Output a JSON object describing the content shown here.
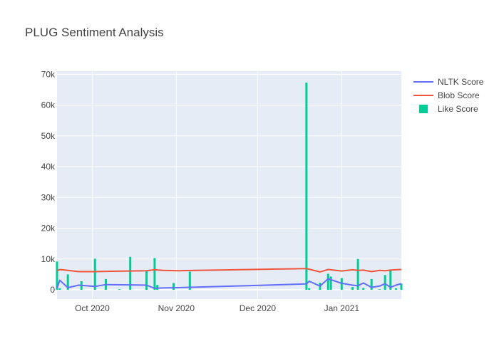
{
  "chart_data": {
    "type": "line+bar",
    "title": "PLUG Sentiment Analysis",
    "xlabel": "",
    "ylabel": "",
    "x_range": [
      "2020-09-18",
      "2021-01-23"
    ],
    "ylim": [
      -3000,
      71000
    ],
    "y_ticks": [
      0,
      10000,
      20000,
      30000,
      40000,
      50000,
      60000,
      70000
    ],
    "y_tick_labels": [
      "0",
      "10k",
      "20k",
      "30k",
      "40k",
      "50k",
      "60k",
      "70k"
    ],
    "x_ticks": [
      "2020-10-01",
      "2020-11-01",
      "2020-12-01",
      "2021-01-01"
    ],
    "x_tick_labels": [
      "Oct 2020",
      "Nov 2020",
      "Dec 2020",
      "Jan 2021"
    ],
    "grid": true,
    "legend_position": "top-right",
    "series": [
      {
        "name": "NLTK Score",
        "type": "line",
        "color": "#636efa",
        "x": [
          "2020-09-18",
          "2020-09-19",
          "2020-09-22",
          "2020-09-26",
          "2020-10-02",
          "2020-10-06",
          "2020-10-15",
          "2020-10-21",
          "2020-10-24",
          "2020-10-27",
          "2020-11-02",
          "2020-12-19",
          "2020-12-20",
          "2020-12-24",
          "2020-12-27",
          "2021-01-01",
          "2021-01-05",
          "2021-01-07",
          "2021-01-09",
          "2021-01-12",
          "2021-01-15",
          "2021-01-17",
          "2021-01-19",
          "2021-01-21",
          "2021-01-23"
        ],
        "values": [
          500,
          3100,
          700,
          1500,
          1100,
          1700,
          1600,
          1500,
          500,
          600,
          700,
          1900,
          2800,
          1200,
          3600,
          2100,
          1500,
          1300,
          2200,
          800,
          1200,
          2000,
          800,
          1500,
          2000
        ]
      },
      {
        "name": "Blob Score",
        "type": "line",
        "color": "#ef553b",
        "x": [
          "2020-09-18",
          "2020-09-19",
          "2020-09-22",
          "2020-09-26",
          "2020-10-02",
          "2020-10-06",
          "2020-10-15",
          "2020-10-21",
          "2020-10-24",
          "2020-10-27",
          "2020-11-02",
          "2020-12-19",
          "2020-12-20",
          "2020-12-24",
          "2020-12-27",
          "2021-01-01",
          "2021-01-05",
          "2021-01-07",
          "2021-01-09",
          "2021-01-12",
          "2021-01-15",
          "2021-01-17",
          "2021-01-19",
          "2021-01-21",
          "2021-01-23"
        ],
        "values": [
          6200,
          6600,
          6300,
          5900,
          5900,
          6000,
          6100,
          6200,
          6500,
          6300,
          6200,
          6900,
          6700,
          5800,
          6600,
          6100,
          6500,
          6300,
          6400,
          5900,
          6300,
          6200,
          6400,
          6500,
          6600
        ]
      },
      {
        "name": "Like Score",
        "type": "bar",
        "color": "#00cc96",
        "x": [
          "2020-09-18",
          "2020-09-19",
          "2020-09-22",
          "2020-09-27",
          "2020-10-02",
          "2020-10-06",
          "2020-10-11",
          "2020-10-15",
          "2020-10-21",
          "2020-10-24",
          "2020-10-25",
          "2020-10-31",
          "2020-11-06",
          "2020-12-19",
          "2020-12-20",
          "2020-12-24",
          "2020-12-27",
          "2020-12-28",
          "2021-01-01",
          "2021-01-05",
          "2021-01-07",
          "2021-01-09",
          "2021-01-12",
          "2021-01-15",
          "2021-01-17",
          "2021-01-19",
          "2021-01-21",
          "2021-01-23"
        ],
        "values": [
          9200,
          500,
          5000,
          2800,
          10100,
          3500,
          200,
          10700,
          6400,
          10300,
          1600,
          2200,
          5900,
          67300,
          500,
          2300,
          5200,
          4300,
          3800,
          900,
          10000,
          600,
          3500,
          200,
          4800,
          6600,
          500,
          2000
        ]
      }
    ]
  }
}
